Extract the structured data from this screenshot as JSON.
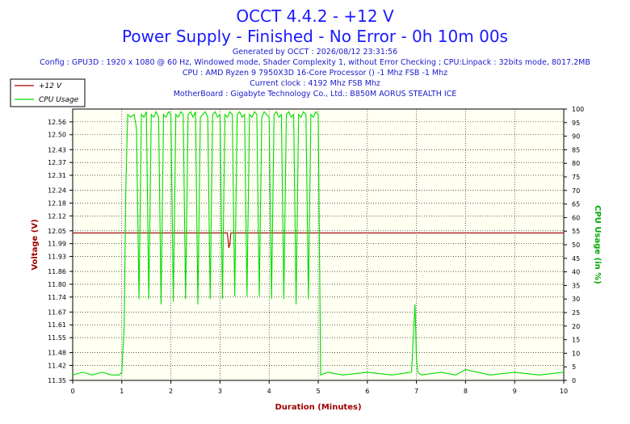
{
  "chart_data": {
    "type": "line",
    "title": "OCCT 4.4.2 - +12 V",
    "subtitle": "Power Supply - Finished - No Error - 0h 10m 00s",
    "info_lines": [
      "Generated by OCCT : 2026/08/12 23:31:56",
      "Config : GPU3D : 1920 x 1080 @ 60 Hz, Windowed mode, Shader Complexity 1, without Error Checking ; CPU:Linpack : 32bits mode, 8017.2MB",
      "CPU : AMD Ryzen 9 7950X3D 16-Core Processor () -1 Mhz FSB -1 Mhz",
      "Current clock : 4192 Mhz FSB  Mhz",
      "MotherBoard : Gigabyte Technology Co., Ltd.: B850M AORUS STEALTH ICE"
    ],
    "xlabel": "Duration (Minutes)",
    "ylabel_left": "Voltage (V)",
    "ylabel_right": "CPU Usage (in %)",
    "xlim": [
      0,
      10
    ],
    "ylim_left": [
      11.35,
      12.62
    ],
    "ylim_right": [
      0,
      100
    ],
    "x_ticks": [
      "0",
      "1",
      "2",
      "3",
      "4",
      "5",
      "6",
      "7",
      "8",
      "9",
      "10"
    ],
    "y_left_ticks": [
      "11.35",
      "11.42",
      "11.48",
      "11.55",
      "11.61",
      "11.67",
      "11.74",
      "11.80",
      "11.86",
      "11.93",
      "11.99",
      "12.05",
      "12.12",
      "12.18",
      "12.24",
      "12.31",
      "12.37",
      "12.43",
      "12.50",
      "12.56"
    ],
    "y_right_ticks": [
      "0",
      "5",
      "10",
      "15",
      "20",
      "25",
      "30",
      "35",
      "40",
      "45",
      "50",
      "55",
      "60",
      "65",
      "70",
      "75",
      "80",
      "85",
      "90",
      "95",
      "100"
    ],
    "grid": true,
    "legend_position": "top-left",
    "series": [
      {
        "name": "+12 V",
        "axis": "left",
        "color": "#a00000",
        "x": [
          0,
          3.15,
          3.18,
          3.2,
          3.22,
          10
        ],
        "y": [
          12.04,
          12.04,
          11.97,
          11.99,
          12.04,
          12.04
        ]
      },
      {
        "name": "CPU Usage",
        "axis": "right",
        "color": "#00dd00",
        "x": [
          0,
          0.2,
          0.4,
          0.6,
          0.8,
          0.95,
          1.0,
          1.05,
          1.08,
          1.12,
          1.18,
          1.25,
          1.3,
          1.35,
          1.4,
          1.45,
          1.5,
          1.55,
          1.6,
          1.65,
          1.7,
          1.75,
          1.8,
          1.85,
          1.9,
          1.95,
          2.0,
          2.05,
          2.1,
          2.15,
          2.2,
          2.25,
          2.3,
          2.35,
          2.4,
          2.45,
          2.5,
          2.55,
          2.6,
          2.65,
          2.7,
          2.75,
          2.8,
          2.85,
          2.9,
          2.95,
          3.0,
          3.05,
          3.1,
          3.15,
          3.2,
          3.25,
          3.3,
          3.35,
          3.4,
          3.45,
          3.5,
          3.55,
          3.6,
          3.65,
          3.7,
          3.75,
          3.8,
          3.85,
          3.9,
          3.95,
          4.0,
          4.05,
          4.1,
          4.15,
          4.2,
          4.25,
          4.3,
          4.35,
          4.4,
          4.45,
          4.5,
          4.55,
          4.6,
          4.65,
          4.7,
          4.75,
          4.8,
          4.85,
          4.9,
          4.95,
          5.0,
          5.05,
          5.2,
          5.5,
          6.0,
          6.5,
          6.9,
          6.97,
          7.0,
          7.03,
          7.1,
          7.5,
          7.8,
          8.0,
          8.5,
          9.0,
          9.5,
          10.0
        ],
        "y": [
          2,
          3,
          2,
          3,
          2,
          2,
          3,
          20,
          70,
          98,
          97,
          98,
          93,
          30,
          98,
          97,
          99,
          30,
          98,
          97,
          99,
          97,
          28,
          98,
          97,
          99,
          98,
          29,
          98,
          97,
          99,
          98,
          30,
          98,
          99,
          97,
          99,
          28,
          97,
          98,
          99,
          97,
          30,
          98,
          99,
          97,
          98,
          30,
          98,
          97,
          99,
          98,
          31,
          98,
          99,
          97,
          98,
          31,
          98,
          97,
          99,
          98,
          31,
          97,
          99,
          98,
          97,
          30,
          98,
          99,
          97,
          98,
          30,
          98,
          99,
          97,
          98,
          28,
          98,
          97,
          99,
          98,
          30,
          98,
          97,
          99,
          98,
          2,
          3,
          2,
          3,
          2,
          3,
          28,
          8,
          3,
          2,
          3,
          2,
          4,
          2,
          3,
          2,
          3
        ]
      }
    ]
  }
}
